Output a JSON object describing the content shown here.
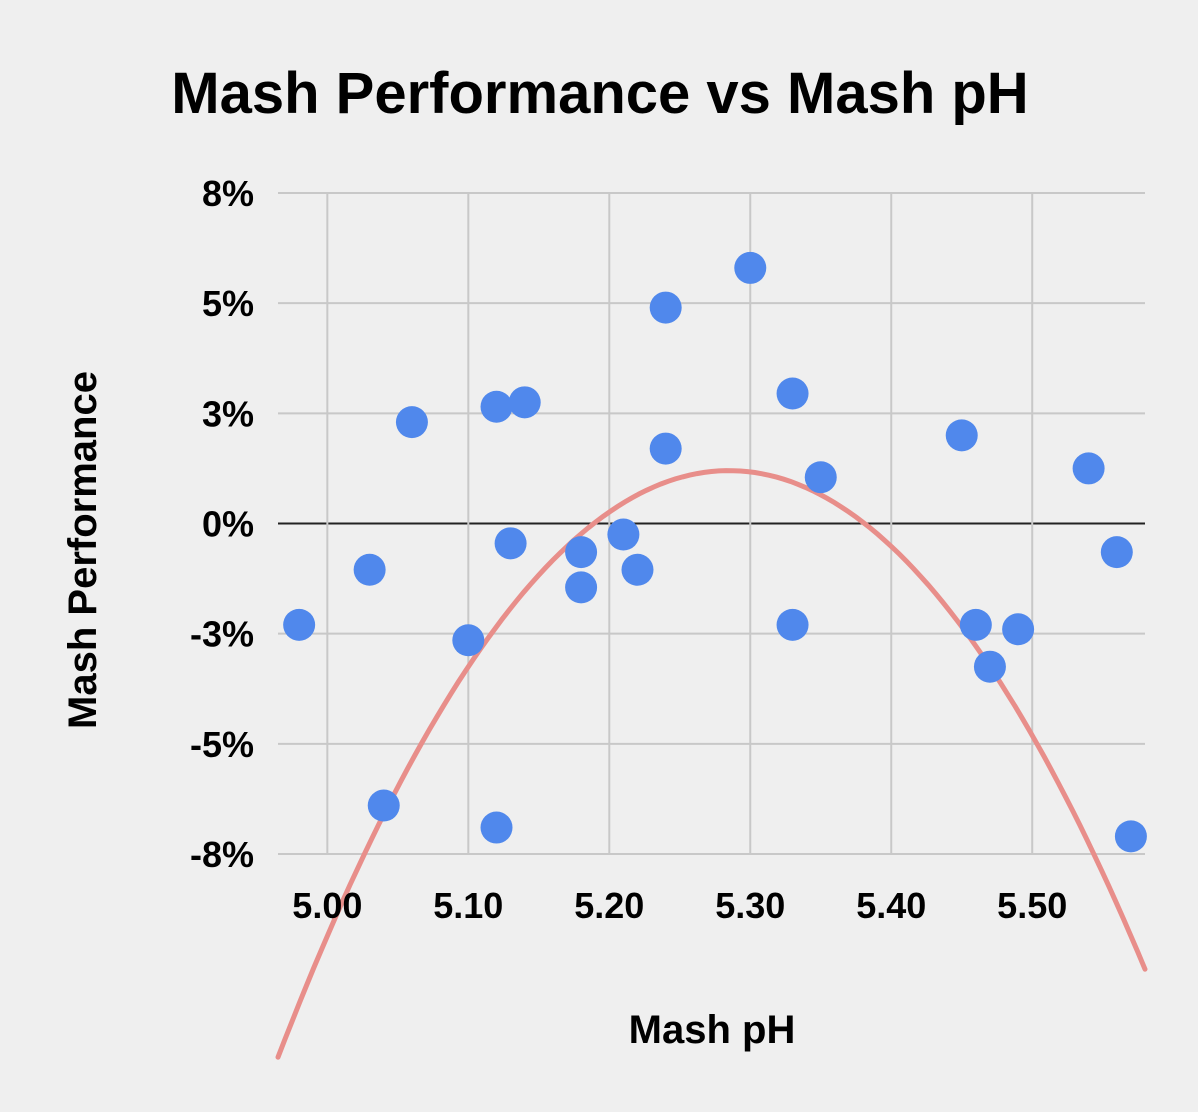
{
  "chart_data": {
    "type": "scatter",
    "title": "Mash Performance vs Mash pH",
    "xlabel": "Mash pH",
    "ylabel": "Mash Performance",
    "xlim": [
      4.965,
      5.58
    ],
    "ylim": [
      -7.5,
      7.5
    ],
    "x_ticks": [
      5.0,
      5.1,
      5.2,
      5.3,
      5.4,
      5.5
    ],
    "x_tick_labels": [
      "5.00",
      "5.10",
      "5.20",
      "5.30",
      "5.40",
      "5.50"
    ],
    "y_ticks": [
      7.5,
      5.0,
      2.5,
      0.0,
      -2.5,
      -5.0,
      -7.5
    ],
    "y_tick_labels": [
      "8%",
      "5%",
      "3%",
      "0%",
      "-3%",
      "-5%",
      "-8%"
    ],
    "grid": true,
    "colors": {
      "points": "#5088ec",
      "trendline": "#e88e8a",
      "grid": "#c8c8c8",
      "zero_line": "#222222",
      "background": "#efefef"
    },
    "series": [
      {
        "name": "Mash Performance",
        "points": [
          {
            "x": 4.98,
            "y": -2.3
          },
          {
            "x": 5.03,
            "y": -1.05
          },
          {
            "x": 5.04,
            "y": -6.4
          },
          {
            "x": 5.06,
            "y": 2.3
          },
          {
            "x": 5.1,
            "y": -2.65
          },
          {
            "x": 5.12,
            "y": 2.65
          },
          {
            "x": 5.12,
            "y": -6.9
          },
          {
            "x": 5.13,
            "y": -0.45
          },
          {
            "x": 5.14,
            "y": 2.75
          },
          {
            "x": 5.18,
            "y": -0.65
          },
          {
            "x": 5.18,
            "y": -1.45
          },
          {
            "x": 5.21,
            "y": -0.25
          },
          {
            "x": 5.22,
            "y": -1.05
          },
          {
            "x": 5.24,
            "y": 4.9
          },
          {
            "x": 5.24,
            "y": 1.7
          },
          {
            "x": 5.3,
            "y": 5.8
          },
          {
            "x": 5.33,
            "y": 2.95
          },
          {
            "x": 5.33,
            "y": -2.3
          },
          {
            "x": 5.35,
            "y": 1.05
          },
          {
            "x": 5.45,
            "y": 2.0
          },
          {
            "x": 5.46,
            "y": -2.3
          },
          {
            "x": 5.47,
            "y": -3.25
          },
          {
            "x": 5.49,
            "y": -2.4
          },
          {
            "x": 5.54,
            "y": 1.25
          },
          {
            "x": 5.56,
            "y": -0.65
          },
          {
            "x": 5.57,
            "y": -7.1
          }
        ]
      }
    ],
    "trendline": {
      "type": "polynomial",
      "degree": 2,
      "vertex_x": 5.285,
      "vertex_y": 1.2,
      "curvature": -130,
      "x_range": [
        4.965,
        5.58
      ]
    }
  }
}
